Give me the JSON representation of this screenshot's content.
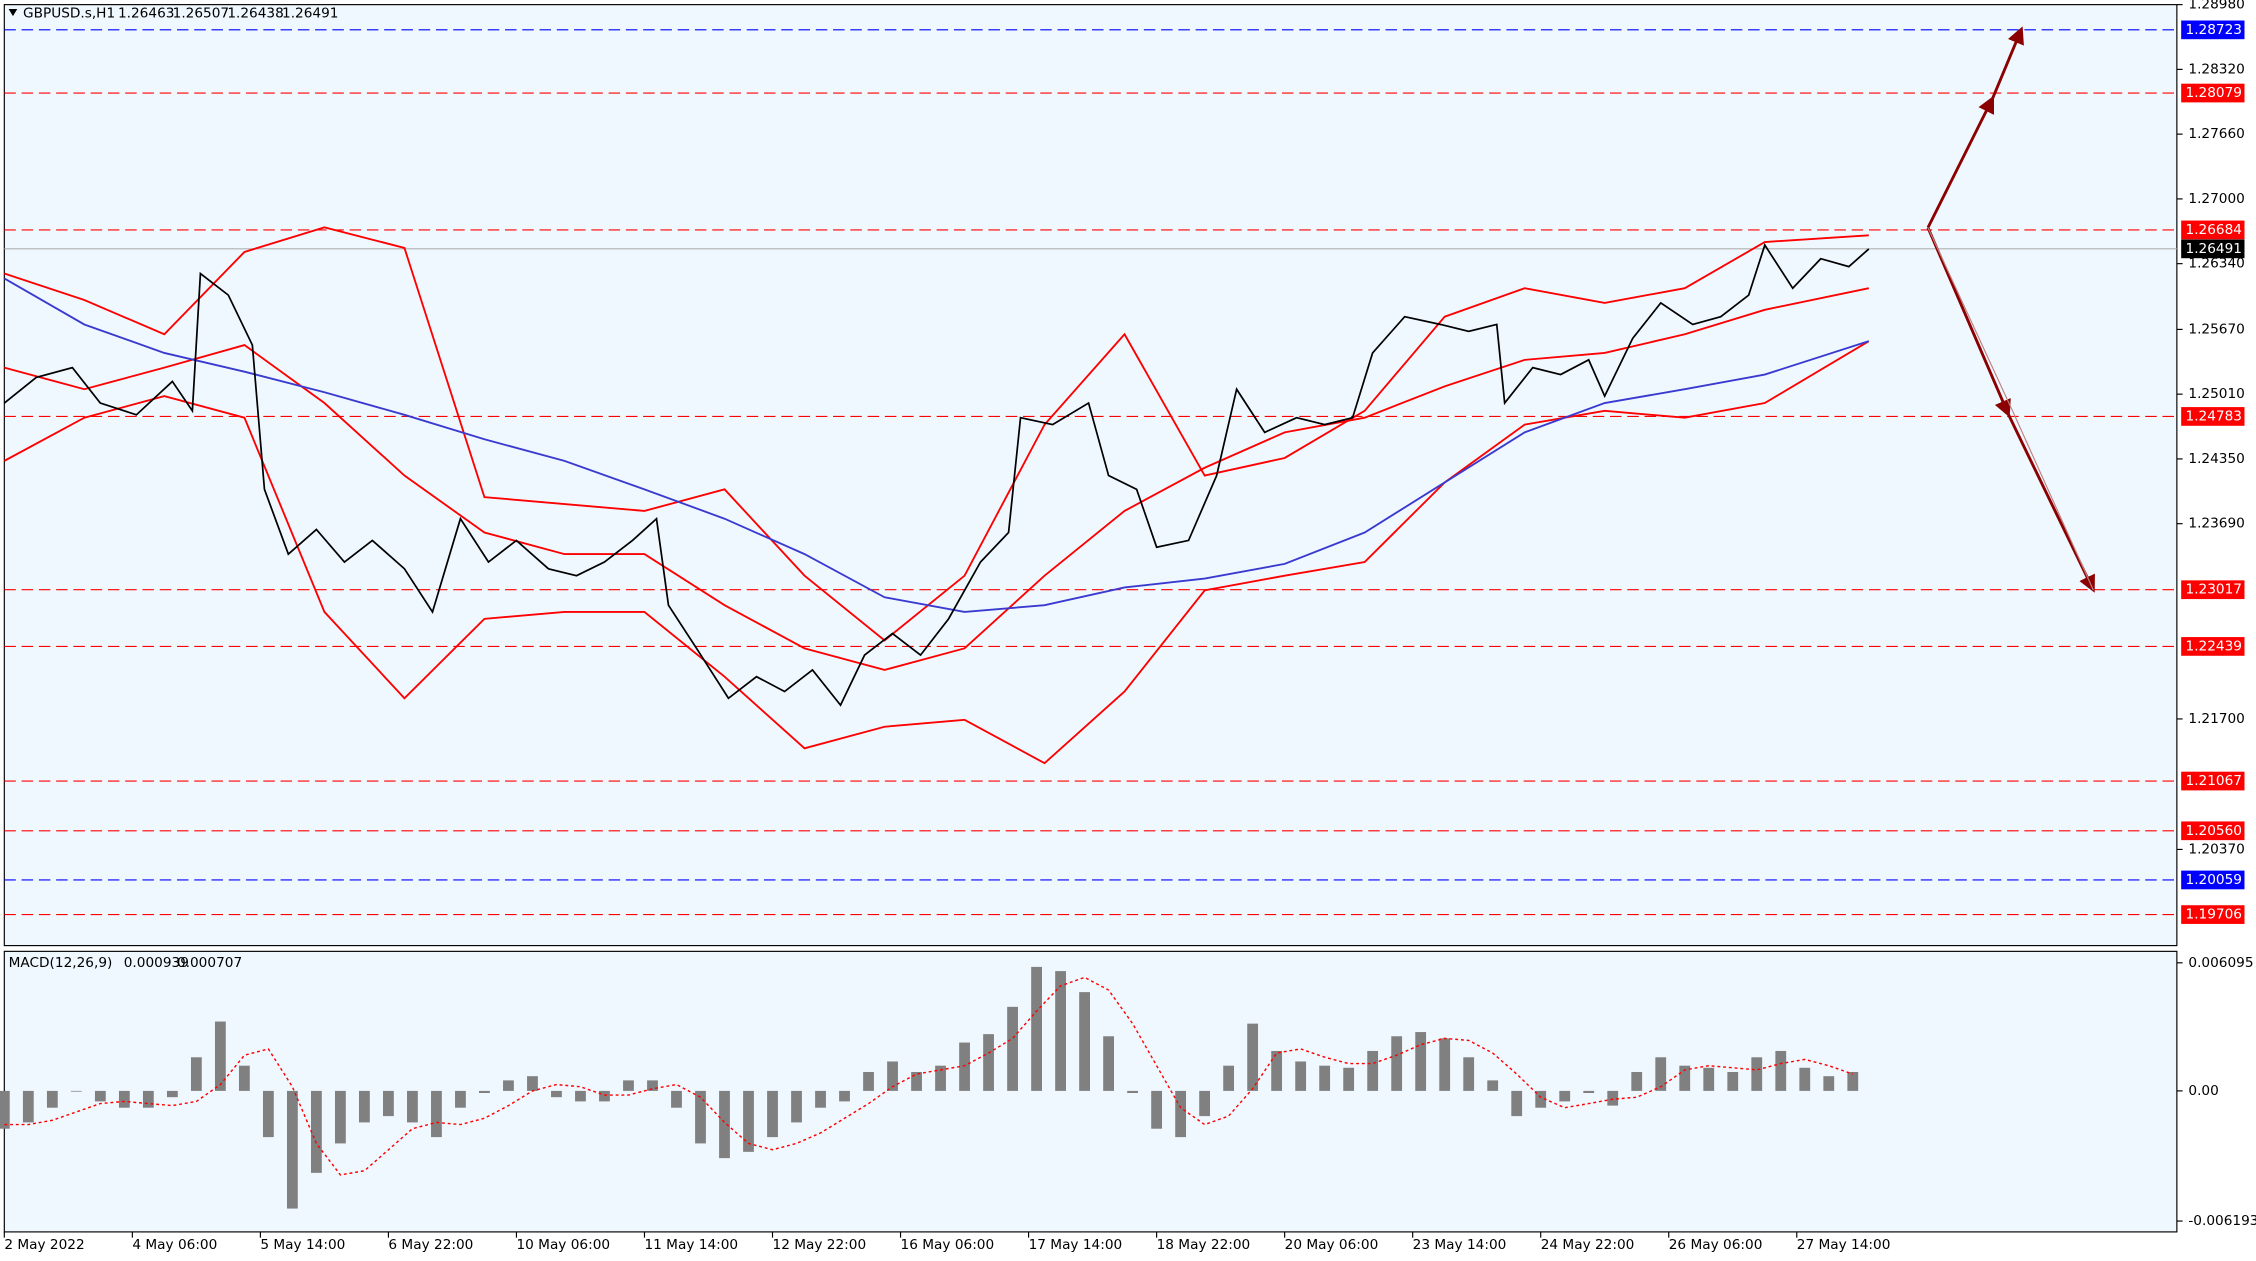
{
  "chart_data": [
    {
      "type": "line",
      "title": "GBPUSD.s,H1",
      "ohlc": [
        1.26463,
        1.26507,
        1.26438,
        1.26491
      ],
      "xlim": [
        0,
        543
      ],
      "ylim": [
        1.1939,
        1.2898
      ],
      "yticks": [
        {
          "value": 1.2898,
          "label": "1.28980"
        },
        {
          "value": 1.2832,
          "label": "1.28320"
        },
        {
          "value": 1.2766,
          "label": "1.27660"
        },
        {
          "value": 1.27,
          "label": "1.27000"
        },
        {
          "value": 1.2634,
          "label": "1.26340"
        },
        {
          "value": 1.2567,
          "label": "1.25670"
        },
        {
          "value": 1.2501,
          "label": "1.25010"
        },
        {
          "value": 1.2435,
          "label": "1.24350"
        },
        {
          "value": 1.2369,
          "label": "1.23690"
        },
        {
          "value": 1.217,
          "label": "1.21700"
        },
        {
          "value": 1.2037,
          "label": "1.20370"
        }
      ],
      "x": [
        0,
        8,
        17,
        24,
        33,
        42,
        47,
        49,
        56,
        62,
        65,
        71,
        78,
        85,
        92,
        100,
        107,
        114,
        121,
        128,
        136,
        143,
        150,
        157,
        163,
        166,
        173,
        181,
        188,
        195,
        202,
        209,
        215,
        222,
        229,
        236,
        244,
        251,
        254,
        262,
        271,
        276,
        283,
        288,
        296,
        303,
        308,
        315,
        323,
        330,
        337,
        342,
        350,
        359,
        366,
        373,
        375,
        382,
        389,
        396,
        400,
        407,
        414,
        422,
        429,
        436,
        440,
        447,
        454,
        461,
        466
      ],
      "series": [
        {
          "color": "#000000",
          "values": [
            1.2492,
            1.2518,
            1.2528,
            1.2492,
            1.248,
            1.2514,
            1.2484,
            1.2624,
            1.2602,
            1.2551,
            1.2404,
            1.2338,
            1.2363,
            1.233,
            1.2352,
            1.2323,
            1.2279,
            1.2374,
            1.233,
            1.2352,
            1.2323,
            1.2316,
            1.233,
            1.2352,
            1.2374,
            1.2286,
            1.2242,
            1.2191,
            1.2213,
            1.2198,
            1.222,
            1.2184,
            1.2235,
            1.2257,
            1.2235,
            1.2272,
            1.233,
            1.236,
            1.2477,
            1.247,
            1.2492,
            1.2418,
            1.2404,
            1.2345,
            1.2352,
            1.2418,
            1.2506,
            1.2462,
            1.2477,
            1.247,
            1.2477,
            1.2543,
            1.258,
            1.2572,
            1.2565,
            1.2572,
            1.2492,
            1.2528,
            1.2521,
            1.2536,
            1.2499,
            1.2558,
            1.2594,
            1.2572,
            1.258,
            1.2602,
            1.2653,
            1.2609,
            1.2639,
            1.2631,
            1.2649
          ]
        }
      ],
      "overlays": {
        "x": [
          0,
          20,
          40,
          60,
          80,
          100,
          120,
          140,
          160,
          180,
          200,
          220,
          240,
          260,
          280,
          300,
          320,
          340,
          360,
          380,
          400,
          420,
          440,
          466
        ],
        "series": [
          {
            "color": "#ff0000",
            "values": [
              1.2624,
              1.2597,
              1.2562,
              1.2646,
              1.2671,
              1.265,
              1.2396,
              1.2389,
              1.2382,
              1.2404,
              1.2316,
              1.225,
              1.2316,
              1.247,
              1.2562,
              1.2418,
              1.2436,
              1.2484,
              1.258,
              1.2609,
              1.2594,
              1.2609,
              1.2656,
              1.2663
            ]
          },
          {
            "color": "#ff0000",
            "values": [
              1.2528,
              1.2506,
              1.2528,
              1.2551,
              1.2492,
              1.2418,
              1.236,
              1.2338,
              1.2338,
              1.2286,
              1.2242,
              1.222,
              1.2242,
              1.2316,
              1.2382,
              1.2426,
              1.2462,
              1.2477,
              1.2509,
              1.2536,
              1.2543,
              1.2562,
              1.2587,
              1.2609
            ]
          },
          {
            "color": "#ff0000",
            "values": [
              1.2433,
              1.2477,
              1.2499,
              1.2477,
              1.2279,
              1.2191,
              1.2272,
              1.2279,
              1.2279,
              1.2213,
              1.214,
              1.2162,
              1.2169,
              1.2125,
              1.2198,
              1.2301,
              1.2316,
              1.233,
              1.2411,
              1.247,
              1.2484,
              1.2477,
              1.2492,
              1.2555
            ]
          },
          {
            "color": "#3a3ad0",
            "values": [
              1.2619,
              1.2572,
              1.2543,
              1.2524,
              1.2503,
              1.248,
              1.2455,
              1.2433,
              1.2404,
              1.2374,
              1.2338,
              1.2294,
              1.2279,
              1.2286,
              1.2304,
              1.2313,
              1.2328,
              1.236,
              1.2411,
              1.2462,
              1.2492,
              1.2506,
              1.2521,
              1.2555
            ]
          }
        ]
      },
      "levels": [
        {
          "value": 1.28723,
          "color": "#0000ff"
        },
        {
          "value": 1.28079,
          "color": "#ff0000"
        },
        {
          "value": 1.26684,
          "color": "#ff0000"
        },
        {
          "value": 1.26491,
          "color": "#000000"
        },
        {
          "value": 1.24783,
          "color": "#ff0000"
        },
        {
          "value": 1.23017,
          "color": "#ff0000"
        },
        {
          "value": 1.22439,
          "color": "#ff0000"
        },
        {
          "value": 1.21067,
          "color": "#ff0000"
        },
        {
          "value": 1.2056,
          "label": "1.20560",
          "color": "#ff0000"
        },
        {
          "value": 1.20059,
          "color": "#0000ff"
        },
        {
          "value": 1.19706,
          "color": "#ff0000"
        }
      ]
    },
    {
      "type": "bar",
      "title": "MACD(12,26,9)",
      "readings": [
        0.000939,
        0.000707
      ],
      "xlim": [
        0,
        543
      ],
      "ylim": [
        -0.00671,
        0.00664
      ],
      "yticks": [
        0.006095,
        {
          "value": 0,
          "label": "0.00"
        },
        -0.006193
      ],
      "xticks": [
        {
          "value": 0,
          "label": "2 May 2022"
        },
        {
          "value": 32,
          "label": "4 May 06:00"
        },
        {
          "value": 64,
          "label": "5 May 14:00"
        },
        {
          "value": 96,
          "label": "6 May 22:00"
        },
        {
          "value": 128,
          "label": "10 May 06:00"
        },
        {
          "value": 160,
          "label": "11 May 14:00"
        },
        {
          "value": 192,
          "label": "12 May 22:00"
        },
        {
          "value": 224,
          "label": "16 May 06:00"
        },
        {
          "value": 256,
          "label": "17 May 14:00"
        },
        {
          "value": 288,
          "label": "18 May 22:00"
        },
        {
          "value": 320,
          "label": "20 May 06:00"
        },
        {
          "value": 352,
          "label": "23 May 14:00"
        },
        {
          "value": 384,
          "label": "24 May 22:00"
        },
        {
          "value": 416,
          "label": "26 May 06:00"
        },
        {
          "value": 448,
          "label": "27 May 14:00"
        }
      ],
      "x": [
        0,
        6,
        12,
        18,
        24,
        30,
        36,
        42,
        48,
        54,
        60,
        66,
        72,
        78,
        84,
        90,
        96,
        102,
        108,
        114,
        120,
        126,
        132,
        138,
        144,
        150,
        156,
        162,
        168,
        174,
        180,
        186,
        192,
        198,
        204,
        210,
        216,
        222,
        228,
        234,
        240,
        246,
        252,
        258,
        264,
        270,
        276,
        282,
        288,
        294,
        300,
        306,
        312,
        318,
        324,
        330,
        336,
        342,
        348,
        354,
        360,
        366,
        372,
        378,
        384,
        390,
        396,
        402,
        408,
        414,
        420,
        426,
        432,
        438,
        444,
        450,
        456,
        462
      ],
      "series": [
        {
          "color": "#808080",
          "values": [
            -0.0018,
            -0.0015,
            -0.0008,
            0,
            -0.0005,
            -0.0008,
            -0.0008,
            -0.0003,
            0.0016,
            0.0033,
            0.0012,
            -0.0022,
            -0.0056,
            -0.0039,
            -0.0025,
            -0.0015,
            -0.0012,
            -0.0015,
            -0.0022,
            -0.0008,
            -0.0001,
            0.0005,
            0.0007,
            -0.0003,
            -0.0005,
            -0.0005,
            0.0005,
            0.0005,
            -0.0008,
            -0.0025,
            -0.0032,
            -0.0029,
            -0.0022,
            -0.0015,
            -0.0008,
            -0.0005,
            0.0009,
            0.0014,
            0.0009,
            0.0012,
            0.0023,
            0.0027,
            0.004,
            0.0059,
            0.0057,
            0.0047,
            0.0026,
            -0.0001,
            -0.0018,
            -0.0022,
            -0.0012,
            0.0012,
            0.0032,
            0.0019,
            0.0014,
            0.0012,
            0.0011,
            0.0019,
            0.0026,
            0.0028,
            0.0025,
            0.0016,
            0.0005,
            -0.0012,
            -0.0008,
            -0.0005,
            -0.0001,
            -0.0007,
            0.0009,
            0.0016,
            0.0012,
            0.0011,
            0.0009,
            0.0016,
            0.0019,
            0.0011,
            0.0007,
            0.0009
          ]
        },
        {
          "color": "#ff0000",
          "values": [
            -0.0016,
            -0.0016,
            -0.0014,
            -0.001,
            -0.0006,
            -0.0005,
            -0.0006,
            -0.0007,
            -0.0005,
            0.0003,
            0.0017,
            0.002,
            0.0002,
            -0.0025,
            -0.004,
            -0.0038,
            -0.0028,
            -0.0018,
            -0.0015,
            -0.0016,
            -0.0013,
            -0.0007,
            0,
            0.0003,
            0.0002,
            -0.0002,
            -0.0002,
            0.0001,
            0.0003,
            -0.0003,
            -0.0015,
            -0.0025,
            -0.0028,
            -0.0025,
            -0.002,
            -0.0013,
            -0.0006,
            0.0002,
            0.0008,
            0.001,
            0.0012,
            0.0018,
            0.0025,
            0.0038,
            0.005,
            0.0054,
            0.0048,
            0.0032,
            0.0012,
            -0.0008,
            -0.0016,
            -0.0012,
            0.0001,
            0.0018,
            0.002,
            0.0016,
            0.0013,
            0.0013,
            0.0017,
            0.0022,
            0.0025,
            0.0024,
            0.0018,
            0.0008,
            -0.0003,
            -0.0008,
            -0.0006,
            -0.0004,
            -0.0003,
            0.0002,
            0.001,
            0.0012,
            0.0011,
            0.001,
            0.0013,
            0.0015,
            0.0012,
            0.0008
          ]
        }
      ]
    }
  ]
}
